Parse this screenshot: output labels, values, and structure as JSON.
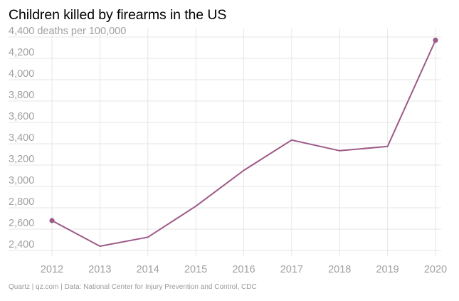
{
  "chart_data": {
    "type": "line",
    "title": "Children killed by firearms in the US",
    "ylabel": "deaths per 100,000",
    "categories": [
      "2012",
      "2013",
      "2014",
      "2015",
      "2016",
      "2017",
      "2018",
      "2019",
      "2020"
    ],
    "series": [
      {
        "name": "Children killed by firearms",
        "values": [
          2680,
          2440,
          2525,
          2815,
          3150,
          3435,
          3335,
          3375,
          4370
        ],
        "color": "#9d5987"
      }
    ],
    "ylim": [
      2400,
      4400
    ],
    "yticks": [
      2400,
      2600,
      2800,
      3000,
      3200,
      3400,
      3600,
      3800,
      4000,
      4200,
      4400
    ],
    "ytick_labels": [
      "2,400",
      "2,600",
      "2,800",
      "3,000",
      "3,200",
      "3,400",
      "3,600",
      "3,800",
      "4,000",
      "4,200",
      "4,400 deaths per 100,000"
    ],
    "grid": true,
    "source": "Quartz | qz.com | Data: National Center for Injury Prevention and Control, CDC"
  },
  "colors": {
    "line": "#9d5987",
    "grid": "#e6e6e6",
    "tick_text": "#a0a0a0"
  }
}
